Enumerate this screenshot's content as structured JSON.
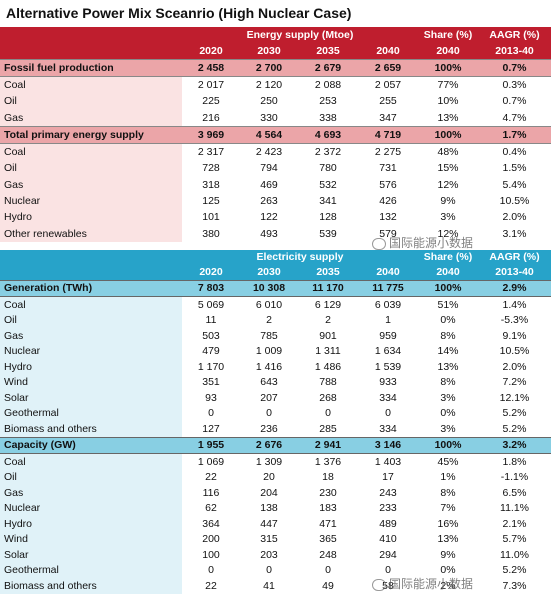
{
  "title": "Alternative Power Mix Sceanrio (High Nuclear Case)",
  "watermark": "国际能源小数据",
  "energy_table": {
    "group": "Energy supply (Mtoe)",
    "share": "Share (%)",
    "aagr": "AAGR (%)",
    "years": [
      "2020",
      "2030",
      "2035",
      "2040",
      "2040",
      "2013-40"
    ],
    "sections": [
      {
        "label": "Fossil fuel production",
        "values": [
          "2 458",
          "2 700",
          "2 679",
          "2 659",
          "100%",
          "0.7%"
        ],
        "items": [
          {
            "label": "Coal",
            "values": [
              "2 017",
              "2 120",
              "2 088",
              "2 057",
              "77%",
              "0.3%"
            ]
          },
          {
            "label": "Oil",
            "values": [
              "225",
              "250",
              "253",
              "255",
              "10%",
              "0.7%"
            ]
          },
          {
            "label": "Gas",
            "values": [
              "216",
              "330",
              "338",
              "347",
              "13%",
              "4.7%"
            ]
          }
        ]
      },
      {
        "label": "Total primary energy supply",
        "values": [
          "3 969",
          "4 564",
          "4 693",
          "4 719",
          "100%",
          "1.7%"
        ],
        "items": [
          {
            "label": "Coal",
            "values": [
              "2 317",
              "2 423",
              "2 372",
              "2 275",
              "48%",
              "0.4%"
            ]
          },
          {
            "label": "Oil",
            "values": [
              "728",
              "794",
              "780",
              "731",
              "15%",
              "1.5%"
            ]
          },
          {
            "label": "Gas",
            "values": [
              "318",
              "469",
              "532",
              "576",
              "12%",
              "5.4%"
            ]
          },
          {
            "label": "Nuclear",
            "values": [
              "125",
              "263",
              "341",
              "426",
              "9%",
              "10.5%"
            ]
          },
          {
            "label": "Hydro",
            "values": [
              "101",
              "122",
              "128",
              "132",
              "3%",
              "2.0%"
            ]
          },
          {
            "label": "Other renewables",
            "values": [
              "380",
              "493",
              "539",
              "579",
              "12%",
              "3.1%"
            ]
          }
        ]
      }
    ]
  },
  "electricity_table": {
    "group": "Electricity supply",
    "share": "Share (%)",
    "aagr": "AAGR (%)",
    "years": [
      "2020",
      "2030",
      "2035",
      "2040",
      "2040",
      "2013-40"
    ],
    "sections": [
      {
        "label": "Generation (TWh)",
        "values": [
          "7 803",
          "10 308",
          "11 170",
          "11 775",
          "100%",
          "2.9%"
        ],
        "items": [
          {
            "label": "Coal",
            "values": [
              "5 069",
              "6 010",
              "6 129",
              "6 039",
              "51%",
              "1.4%"
            ]
          },
          {
            "label": "Oil",
            "values": [
              "11",
              "2",
              "2",
              "1",
              "0%",
              "-5.3%"
            ]
          },
          {
            "label": "Gas",
            "values": [
              "503",
              "785",
              "901",
              "959",
              "8%",
              "9.1%"
            ]
          },
          {
            "label": "Nuclear",
            "values": [
              "479",
              "1 009",
              "1 311",
              "1 634",
              "14%",
              "10.5%"
            ]
          },
          {
            "label": "Hydro",
            "values": [
              "1 170",
              "1 416",
              "1 486",
              "1 539",
              "13%",
              "2.0%"
            ]
          },
          {
            "label": "Wind",
            "values": [
              "351",
              "643",
              "788",
              "933",
              "8%",
              "7.2%"
            ]
          },
          {
            "label": "Solar",
            "values": [
              "93",
              "207",
              "268",
              "334",
              "3%",
              "12.1%"
            ]
          },
          {
            "label": "Geothermal",
            "values": [
              "0",
              "0",
              "0",
              "0",
              "0%",
              "5.2%"
            ]
          },
          {
            "label": "Biomass and others",
            "values": [
              "127",
              "236",
              "285",
              "334",
              "3%",
              "5.2%"
            ]
          }
        ]
      },
      {
        "label": "Capacity (GW)",
        "values": [
          "1 955",
          "2 676",
          "2 941",
          "3 146",
          "100%",
          "3.2%"
        ],
        "items": [
          {
            "label": "Coal",
            "values": [
              "1 069",
              "1 309",
              "1 376",
              "1 403",
              "45%",
              "1.8%"
            ]
          },
          {
            "label": "Oil",
            "values": [
              "22",
              "20",
              "18",
              "17",
              "1%",
              "-1.1%"
            ]
          },
          {
            "label": "Gas",
            "values": [
              "116",
              "204",
              "230",
              "243",
              "8%",
              "6.5%"
            ]
          },
          {
            "label": "Nuclear",
            "values": [
              "62",
              "138",
              "183",
              "233",
              "7%",
              "11.1%"
            ]
          },
          {
            "label": "Hydro",
            "values": [
              "364",
              "447",
              "471",
              "489",
              "16%",
              "2.1%"
            ]
          },
          {
            "label": "Wind",
            "values": [
              "200",
              "315",
              "365",
              "410",
              "13%",
              "5.7%"
            ]
          },
          {
            "label": "Solar",
            "values": [
              "100",
              "203",
              "248",
              "294",
              "9%",
              "11.0%"
            ]
          },
          {
            "label": "Geothermal",
            "values": [
              "0",
              "0",
              "0",
              "0",
              "0%",
              "5.2%"
            ]
          },
          {
            "label": "Biomass and others",
            "values": [
              "22",
              "41",
              "49",
              "58",
              "2%",
              "7.3%"
            ]
          }
        ]
      }
    ]
  }
}
